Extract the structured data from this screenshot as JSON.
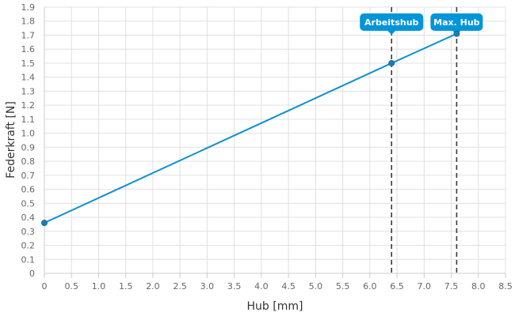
{
  "chart_data": {
    "type": "line",
    "xlabel": "Hub [mm]",
    "ylabel": "Federkraft [N]",
    "xlim": [
      0,
      8.5
    ],
    "ylim": [
      0,
      1.9
    ],
    "x_ticks": [
      "0",
      "0.5",
      "1.0",
      "1.5",
      "2.0",
      "2.5",
      "3.0",
      "3.5",
      "4.0",
      "4.5",
      "5.0",
      "5.5",
      "6.0",
      "6.5",
      "7.0",
      "7.5",
      "8.0",
      "8.5"
    ],
    "y_ticks": [
      "0",
      "0.1",
      "0.2",
      "0.3",
      "0.4",
      "0.5",
      "0.6",
      "0.7",
      "0.8",
      "0.9",
      "1.0",
      "1.1",
      "1.2",
      "1.3",
      "1.4",
      "1.5",
      "1.6",
      "1.7",
      "1.8",
      "1.9"
    ],
    "grid": true,
    "series": [
      {
        "color": "#0f8fd1",
        "points": [
          {
            "x": 0,
            "y": 0.36
          },
          {
            "x": 6.4,
            "y": 1.5
          },
          {
            "x": 7.6,
            "y": 1.71
          }
        ]
      }
    ],
    "markers": [
      {
        "x": 6.4,
        "label": "Arbeitshub",
        "color": "#0095db"
      },
      {
        "x": 7.6,
        "label": "Max. Hub",
        "color": "#0095db"
      }
    ]
  }
}
